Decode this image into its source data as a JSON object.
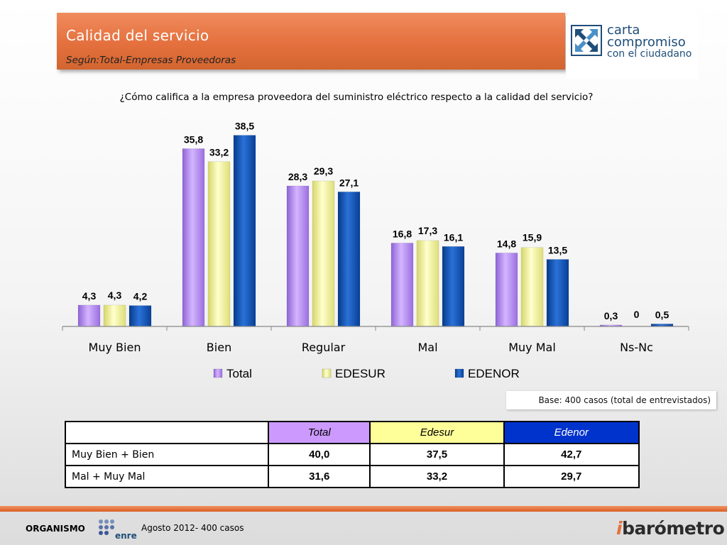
{
  "header": {
    "title": "Calidad del servicio",
    "subtitle": "Según:Total-Empresas Proveedoras"
  },
  "logo": {
    "line1": "carta",
    "line2": "compromiso",
    "line3": "con el ciudadano"
  },
  "question": "¿Cómo califica a la empresa proveedora del suministro eléctrico respecto a la calidad del servicio?",
  "colors": {
    "total": "#b68cf0",
    "edesur": "#f3f39a",
    "edenor": "#0a4fb5",
    "accent": "#e4703e"
  },
  "chart_data": {
    "type": "bar",
    "categories": [
      "Muy Bien",
      "Bien",
      "Regular",
      "Mal",
      "Muy Mal",
      "Ns-Nc"
    ],
    "series": [
      {
        "name": "Total",
        "values": [
          4.3,
          35.8,
          28.3,
          16.8,
          14.8,
          0.3
        ],
        "labels": [
          "4,3",
          "35,8",
          "28,3",
          "16,8",
          "14,8",
          "0,3"
        ]
      },
      {
        "name": "EDESUR",
        "values": [
          4.3,
          33.2,
          29.3,
          17.3,
          15.9,
          0
        ],
        "labels": [
          "4,3",
          "33,2",
          "29,3",
          "17,3",
          "15,9",
          "0"
        ]
      },
      {
        "name": "EDENOR",
        "values": [
          4.2,
          38.5,
          27.1,
          16.1,
          13.5,
          0.5
        ],
        "labels": [
          "4,2",
          "38,5",
          "27,1",
          "16,1",
          "13,5",
          "0,5"
        ]
      }
    ],
    "ylim": [
      0,
      40
    ],
    "grid": false,
    "legend": "bottom"
  },
  "base_note": "Base: 400  casos (total de entrevistados)",
  "table": {
    "headers": [
      "",
      "Total",
      "Edesur",
      "Edenor"
    ],
    "rows": [
      {
        "label": "Muy Bien + Bien",
        "values": [
          "40,0",
          "37,5",
          "42,7"
        ]
      },
      {
        "label": "Mal + Muy Mal",
        "values": [
          "31,6",
          "33,2",
          "29,7"
        ]
      }
    ]
  },
  "footer": {
    "organismo": "ORGANISMO",
    "enre": "enre",
    "date": "Agosto 2012- 400 casos",
    "brand": "barómetro",
    "brand_mark": "i"
  }
}
